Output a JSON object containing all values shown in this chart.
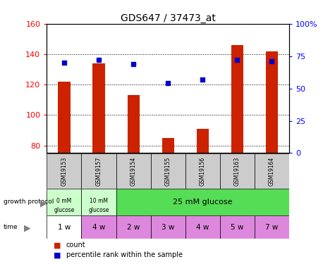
{
  "title": "GDS647 / 37473_at",
  "samples": [
    "GSM19153",
    "GSM19157",
    "GSM19154",
    "GSM19155",
    "GSM19156",
    "GSM19163",
    "GSM19164"
  ],
  "counts": [
    122,
    134,
    113,
    85,
    91,
    146,
    142
  ],
  "percentiles": [
    70,
    72,
    69,
    54,
    57,
    72,
    71
  ],
  "ylim_left": [
    75,
    160
  ],
  "ylim_right": [
    0,
    100
  ],
  "yticks_left": [
    80,
    100,
    120,
    140,
    160
  ],
  "yticks_right": [
    0,
    25,
    50,
    75,
    100
  ],
  "ytick_labels_right": [
    "0",
    "25",
    "50",
    "75",
    "100%"
  ],
  "bar_color": "#cc2200",
  "point_color": "#0000cc",
  "growth_protocol_colors": [
    "#ccffcc",
    "#ccffcc",
    "#55dd55"
  ],
  "time_colors": [
    "#ffffff",
    "#dd88dd",
    "#dd88dd",
    "#dd88dd",
    "#dd88dd",
    "#dd88dd",
    "#dd88dd"
  ],
  "time_labels": [
    "1 w",
    "4 w",
    "2 w",
    "3 w",
    "4 w",
    "5 w",
    "7 w"
  ],
  "sample_bg_color": "#cccccc",
  "legend_count_color": "#cc2200",
  "legend_pct_color": "#0000cc"
}
